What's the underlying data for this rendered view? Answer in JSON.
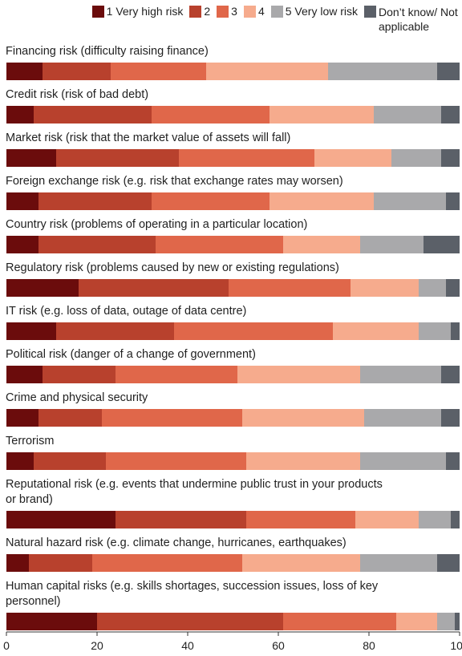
{
  "chart_data": {
    "type": "stacked-bar-horizontal",
    "categories": [
      "Financing risk (difficulty raising finance)",
      "Credit risk (risk of bad debt)",
      "Market risk (risk that the market value of assets will fall)",
      "Foreign exchange risk (e.g. risk that exchange rates may worsen)",
      "Country risk (problems of operating in a particular location)",
      "Regulatory risk (problems caused by new or existing regulations)",
      "IT risk (e.g. loss of data, outage of data centre)",
      "Political risk (danger of a change of government)",
      "Crime and physical security",
      "Terrorism",
      "Reputational risk (e.g. events that undermine public trust in your products or brand)",
      "Natural hazard risk (e.g. climate change, hurricanes, earthquakes)",
      "Human capital risks (e.g. skills shortages, succession issues, loss of key personnel)"
    ],
    "series": [
      {
        "name": "1 Very high risk",
        "color": "#6b0c0c",
        "values": [
          8,
          6,
          11,
          7,
          7,
          16,
          11,
          8,
          7,
          6,
          24,
          5,
          20
        ]
      },
      {
        "name": "2",
        "color": "#b8412d",
        "values": [
          15,
          26,
          27,
          25,
          26,
          33,
          26,
          16,
          14,
          16,
          29,
          14,
          41
        ]
      },
      {
        "name": "3",
        "color": "#e0674a",
        "values": [
          21,
          26,
          30,
          26,
          28,
          27,
          35,
          27,
          31,
          31,
          24,
          33,
          25
        ]
      },
      {
        "name": "4",
        "color": "#f6ab8d",
        "values": [
          27,
          23,
          17,
          23,
          17,
          15,
          19,
          27,
          27,
          25,
          14,
          26,
          9
        ]
      },
      {
        "name": "5 Very low risk",
        "color": "#a9a9ab",
        "values": [
          24,
          15,
          11,
          16,
          14,
          6,
          7,
          18,
          17,
          19,
          7,
          17,
          4
        ]
      },
      {
        "name": "Don’t know/ Not applicable",
        "color": "#5b6068",
        "values": [
          5,
          4,
          4,
          3,
          8,
          3,
          2,
          4,
          4,
          3,
          2,
          5,
          1
        ]
      }
    ],
    "xlim": [
      0,
      100
    ],
    "xticks": [
      0,
      20,
      40,
      60,
      80,
      100
    ]
  }
}
